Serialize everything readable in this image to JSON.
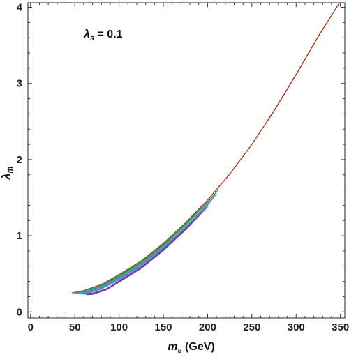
{
  "chart_data": {
    "type": "area",
    "xlabel": "m_s (GeV)",
    "xlabel_parts": {
      "symbol": "m",
      "subscript": "s",
      "unit": " (GeV)"
    },
    "ylabel": "λ_m",
    "ylabel_parts": {
      "symbol": "λ",
      "subscript": "m"
    },
    "annotation": "λ_s = 0.1",
    "annotation_parts": {
      "symbol": "λ",
      "subscript": "s",
      "rest": " = 0.1"
    },
    "xlim": [
      -3,
      355
    ],
    "ylim": [
      -0.08,
      4.06
    ],
    "x_ticks": [
      0,
      50,
      100,
      150,
      200,
      250,
      300,
      350
    ],
    "x_tick_labels": [
      "0",
      "50",
      "100",
      "150",
      "200",
      "250",
      "300",
      "350"
    ],
    "y_ticks": [
      0,
      1,
      2,
      3,
      4
    ],
    "y_tick_labels": [
      "0",
      "1",
      "2",
      "3",
      "4"
    ],
    "x_minor_step": 10,
    "y_minor_step": 0.2,
    "grid": false,
    "frame": "full box with inward ticks",
    "series": [
      {
        "color": "#b03020",
        "upper": [
          [
            47,
            0.25
          ],
          [
            60,
            0.28
          ],
          [
            80,
            0.36
          ],
          [
            100,
            0.49
          ],
          [
            125,
            0.67
          ],
          [
            150,
            0.9
          ],
          [
            175,
            1.17
          ],
          [
            200,
            1.47
          ],
          [
            225,
            1.81
          ],
          [
            250,
            2.2
          ],
          [
            275,
            2.64
          ],
          [
            300,
            3.12
          ],
          [
            325,
            3.62
          ],
          [
            349,
            4.06
          ]
        ],
        "lower": [
          [
            47,
            0.25
          ],
          [
            60,
            0.278
          ],
          [
            80,
            0.358
          ],
          [
            100,
            0.488
          ],
          [
            125,
            0.668
          ],
          [
            150,
            0.898
          ],
          [
            175,
            1.168
          ],
          [
            200,
            1.468
          ],
          [
            225,
            1.808
          ],
          [
            250,
            2.198
          ],
          [
            275,
            2.636
          ],
          [
            300,
            3.116
          ],
          [
            325,
            3.616
          ],
          [
            349,
            4.06
          ]
        ]
      },
      {
        "color": "#3a9a3a",
        "upper": [
          [
            49,
            0.25
          ],
          [
            60,
            0.275
          ],
          [
            80,
            0.352
          ],
          [
            100,
            0.48
          ],
          [
            125,
            0.66
          ],
          [
            150,
            0.888
          ],
          [
            175,
            1.158
          ],
          [
            200,
            1.45
          ],
          [
            212,
            1.6
          ]
        ],
        "lower": [
          [
            49,
            0.25
          ],
          [
            60,
            0.265
          ],
          [
            80,
            0.34
          ],
          [
            100,
            0.462
          ],
          [
            125,
            0.64
          ],
          [
            150,
            0.87
          ],
          [
            175,
            1.14
          ],
          [
            200,
            1.44
          ],
          [
            212,
            1.6
          ]
        ]
      },
      {
        "color": "#4a90d0",
        "upper": [
          [
            50,
            0.245
          ],
          [
            60,
            0.26
          ],
          [
            80,
            0.33
          ],
          [
            100,
            0.45
          ],
          [
            125,
            0.625
          ],
          [
            150,
            0.855
          ],
          [
            175,
            1.12
          ],
          [
            200,
            1.42
          ],
          [
            210,
            1.55
          ]
        ],
        "lower": [
          [
            52,
            0.24
          ],
          [
            62,
            0.232
          ],
          [
            80,
            0.3
          ],
          [
            100,
            0.42
          ],
          [
            125,
            0.6
          ],
          [
            150,
            0.83
          ],
          [
            175,
            1.1
          ],
          [
            200,
            1.4
          ],
          [
            210,
            1.55
          ]
        ]
      },
      {
        "color": "#7a3aa0",
        "upper": [
          [
            62,
            0.24
          ],
          [
            70,
            0.245
          ],
          [
            85,
            0.3
          ],
          [
            100,
            0.405
          ],
          [
            125,
            0.585
          ],
          [
            150,
            0.82
          ],
          [
            175,
            1.09
          ],
          [
            200,
            1.38
          ]
        ],
        "lower": [
          [
            64,
            0.225
          ],
          [
            70,
            0.23
          ],
          [
            85,
            0.285
          ],
          [
            100,
            0.39
          ],
          [
            125,
            0.57
          ],
          [
            150,
            0.805
          ],
          [
            175,
            1.075
          ],
          [
            200,
            1.38
          ]
        ]
      }
    ]
  }
}
